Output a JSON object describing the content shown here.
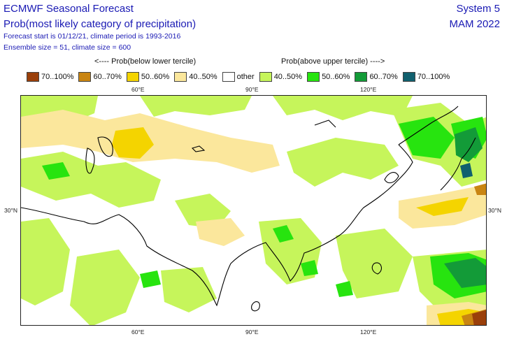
{
  "header": {
    "title": "ECMWF Seasonal Forecast",
    "subtitle": "Prob(most likely category of precipitation)",
    "forecast_start": "Forecast start is 01/12/21, climate period is 1993-2016",
    "ensemble": "Ensemble size = 51, climate size = 600",
    "system": "System 5",
    "season": "MAM 2022"
  },
  "legend": {
    "below_heading": "<---- Prob(below lower tercile)",
    "above_heading": "Prob(above upper tercile) ---->",
    "items": [
      {
        "label": "70..100%",
        "color": "#9a3f0a"
      },
      {
        "label": "60..70%",
        "color": "#c98512"
      },
      {
        "label": "50..60%",
        "color": "#f4d400"
      },
      {
        "label": "40..50%",
        "color": "#fbe79c"
      },
      {
        "label": "other",
        "color": "#ffffff"
      },
      {
        "label": "40..50%",
        "color": "#c6f55b"
      },
      {
        "label": "50..60%",
        "color": "#27e40f"
      },
      {
        "label": "60..70%",
        "color": "#139b38"
      },
      {
        "label": "70..100%",
        "color": "#11606e"
      }
    ]
  },
  "axes": {
    "top_lon": [
      "60°E",
      "90°E",
      "120°E"
    ],
    "bottom_lon": [
      "60°E",
      "90°E",
      "120°E"
    ],
    "left_lat": "30°N",
    "right_lat": "30°N"
  }
}
